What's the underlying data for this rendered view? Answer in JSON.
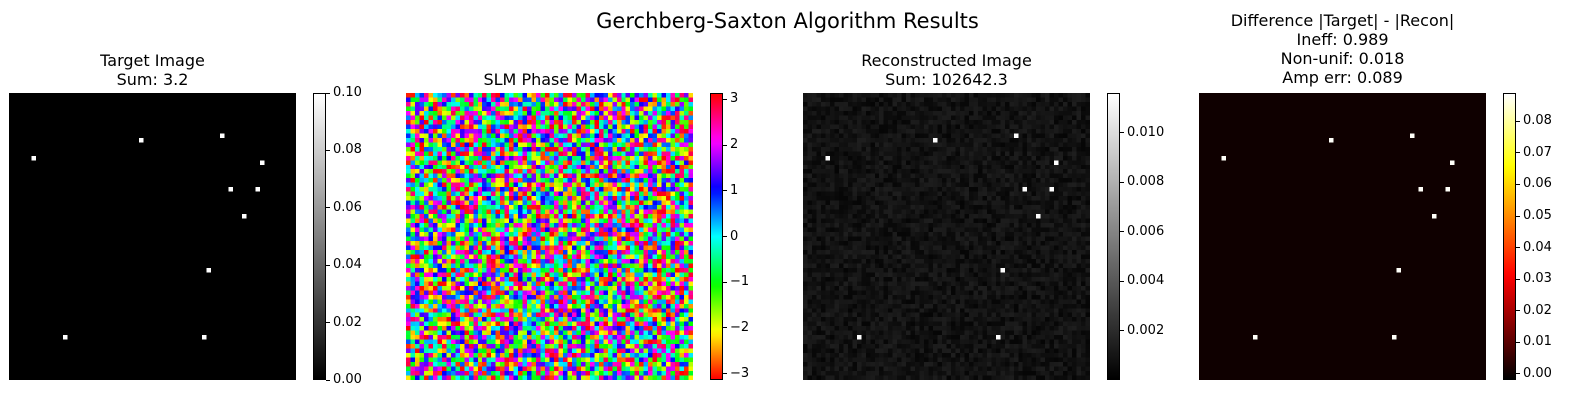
{
  "figure": {
    "title": "Gerchberg-Saxton Algorithm Results"
  },
  "chart_data": [
    {
      "type": "heatmap",
      "title_lines": [
        "Target Image",
        "Sum: 3.2"
      ],
      "colormap": "gray",
      "grid_size": 64,
      "background_value": 0.0,
      "points": [
        [
          5,
          14
        ],
        [
          29,
          10
        ],
        [
          47,
          9
        ],
        [
          56,
          15
        ],
        [
          49,
          21
        ],
        [
          55,
          21
        ],
        [
          52,
          27
        ],
        [
          44,
          39
        ],
        [
          12,
          54
        ],
        [
          43,
          54
        ]
      ],
      "point_value": 0.1,
      "colorbar": {
        "range": [
          0.0,
          0.1
        ],
        "ticks": [
          "0.00",
          "0.02",
          "0.04",
          "0.06",
          "0.08",
          "0.10"
        ]
      }
    },
    {
      "type": "heatmap",
      "title_lines": [
        "SLM Phase Mask"
      ],
      "colormap": "hsv",
      "grid_size": 64,
      "value_range": [
        -3.14159,
        3.14159
      ],
      "pattern": "random phase",
      "colorbar": {
        "range": [
          -3.14159,
          3.14159
        ],
        "ticks": [
          "−3",
          "−2",
          "−1",
          "0",
          "1",
          "2",
          "3"
        ]
      }
    },
    {
      "type": "heatmap",
      "title_lines": [
        "Reconstructed Image",
        "Sum: 102642.3"
      ],
      "colormap": "gray",
      "grid_size": 64,
      "background_value": 0.0008,
      "points": [
        [
          5,
          14
        ],
        [
          29,
          10
        ],
        [
          47,
          9
        ],
        [
          56,
          15
        ],
        [
          49,
          21
        ],
        [
          55,
          21
        ],
        [
          52,
          27
        ],
        [
          44,
          39
        ],
        [
          12,
          54
        ],
        [
          43,
          54
        ]
      ],
      "point_value": 0.0115,
      "colorbar": {
        "range": [
          0.0,
          0.0116
        ],
        "ticks": [
          "0.002",
          "0.004",
          "0.006",
          "0.008",
          "0.010"
        ]
      }
    },
    {
      "type": "heatmap",
      "title_lines": [
        "Difference |Target| - |Recon|",
        "Ineff: 0.989",
        "Non-unif: 0.018",
        "Amp err: 0.089"
      ],
      "colormap": "hot",
      "grid_size": 64,
      "background_value": 0.0,
      "points": [
        [
          5,
          14
        ],
        [
          29,
          10
        ],
        [
          47,
          9
        ],
        [
          56,
          15
        ],
        [
          49,
          21
        ],
        [
          55,
          21
        ],
        [
          52,
          27
        ],
        [
          44,
          39
        ],
        [
          12,
          54
        ],
        [
          43,
          54
        ]
      ],
      "point_value": 0.0885,
      "colorbar": {
        "range": [
          -0.002,
          0.089
        ],
        "ticks": [
          "0.00",
          "0.01",
          "0.02",
          "0.03",
          "0.04",
          "0.05",
          "0.06",
          "0.07",
          "0.08"
        ]
      }
    }
  ]
}
